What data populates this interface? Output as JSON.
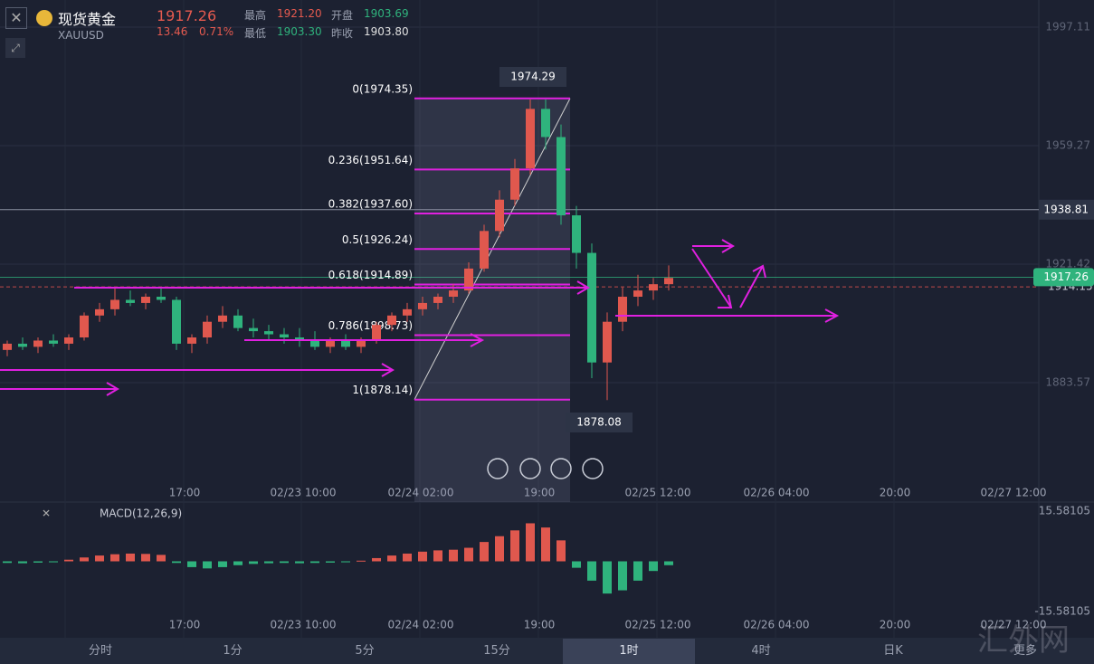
{
  "header": {
    "symbol_name": "现货黄金",
    "symbol_code": "XAUUSD",
    "price": "1917.26",
    "change": "13.46",
    "change_pct": "0.71%",
    "stats": [
      {
        "label": "最高",
        "value": "1921.20"
      },
      {
        "label": "开盘",
        "value": "1903.69"
      },
      {
        "label": "最低",
        "value": "1903.30"
      },
      {
        "label": "昨收",
        "value": "1903.80"
      }
    ]
  },
  "price_axis": {
    "ylim": [
      1848.3,
      2005.78
    ],
    "yticks": [
      1997.11,
      1959.27,
      1921.42,
      1883.57
    ],
    "crosshair": 1938.81,
    "last": 1917.26,
    "ref": 1914.15
  },
  "fib_levels": [
    {
      "value": 1974.35,
      "label": "0(1974.35)"
    },
    {
      "value": 1951.64,
      "label": "0.236(1951.64)"
    },
    {
      "value": 1937.6,
      "label": "0.382(1937.60)"
    },
    {
      "value": 1926.24,
      "label": "0.5(1926.24)"
    },
    {
      "value": 1914.89,
      "label": "0.618(1914.89)"
    },
    {
      "value": 1898.73,
      "label": "0.786(1898.73)"
    },
    {
      "value": 1878.14,
      "label": "1(1878.14)"
    }
  ],
  "high_marker": 1974.29,
  "low_marker": 1878.08,
  "candles": [
    [
      1894,
      1897,
      1892,
      1896
    ],
    [
      1896,
      1898,
      1894,
      1895
    ],
    [
      1895,
      1898,
      1893,
      1897
    ],
    [
      1897,
      1899,
      1895,
      1896
    ],
    [
      1896,
      1899,
      1894,
      1898
    ],
    [
      1898,
      1906,
      1897,
      1905
    ],
    [
      1905,
      1909,
      1903,
      1907
    ],
    [
      1907,
      1914,
      1905,
      1910
    ],
    [
      1910,
      1913,
      1908,
      1909
    ],
    [
      1909,
      1912,
      1907,
      1911
    ],
    [
      1911,
      1914,
      1909,
      1910
    ],
    [
      1910,
      1911,
      1894,
      1896
    ],
    [
      1896,
      1899,
      1893,
      1898
    ],
    [
      1898,
      1905,
      1896,
      1903
    ],
    [
      1903,
      1908,
      1901,
      1905
    ],
    [
      1905,
      1907,
      1900,
      1901
    ],
    [
      1901,
      1904,
      1898,
      1900
    ],
    [
      1900,
      1902,
      1897,
      1899
    ],
    [
      1899,
      1901,
      1896,
      1898
    ],
    [
      1898,
      1901,
      1895,
      1897
    ],
    [
      1897,
      1900,
      1894,
      1895
    ],
    [
      1895,
      1898,
      1893,
      1897
    ],
    [
      1897,
      1899,
      1894,
      1895
    ],
    [
      1895,
      1898,
      1893,
      1897
    ],
    [
      1897,
      1903,
      1896,
      1902
    ],
    [
      1902,
      1906,
      1900,
      1905
    ],
    [
      1905,
      1909,
      1903,
      1907
    ],
    [
      1907,
      1911,
      1905,
      1909
    ],
    [
      1909,
      1912,
      1907,
      1911
    ],
    [
      1911,
      1915,
      1909,
      1913
    ],
    [
      1913,
      1922,
      1912,
      1920
    ],
    [
      1920,
      1934,
      1919,
      1932
    ],
    [
      1932,
      1945,
      1930,
      1942
    ],
    [
      1942,
      1955,
      1940,
      1952
    ],
    [
      1952,
      1974,
      1950,
      1971
    ],
    [
      1971,
      1974,
      1958,
      1962
    ],
    [
      1962,
      1966,
      1934,
      1937
    ],
    [
      1937,
      1940,
      1920,
      1925
    ],
    [
      1925,
      1928,
      1885,
      1890
    ],
    [
      1890,
      1906,
      1878,
      1903
    ],
    [
      1903,
      1914,
      1900,
      1911
    ],
    [
      1911,
      1918,
      1908,
      1913
    ],
    [
      1913,
      1917,
      1910,
      1915
    ],
    [
      1915,
      1921,
      1913,
      1917
    ]
  ],
  "time_labels": [
    "17:00",
    "02/23 10:00",
    "02/24 02:00",
    "19:00",
    "02/25 12:00",
    "02/26 04:00",
    "20:00",
    "02/27 12:00"
  ],
  "macd": {
    "label": "MACD(12,26,9)",
    "ylim": [
      -15.58105,
      15.58105
    ],
    "yticks": [
      15.58105,
      -15.58105
    ],
    "histogram": [
      -0.5,
      -0.6,
      -0.4,
      -0.3,
      0.5,
      1.2,
      1.8,
      2.2,
      2.4,
      2.3,
      2.0,
      -0.5,
      -1.8,
      -2.2,
      -1.8,
      -1.2,
      -0.8,
      -0.6,
      -0.5,
      -0.6,
      -0.5,
      -0.4,
      -0.3,
      0.2,
      1.0,
      1.8,
      2.4,
      3.0,
      3.4,
      3.6,
      4.2,
      6.0,
      7.8,
      9.6,
      11.8,
      10.5,
      6.5,
      -2.0,
      -6.0,
      -10.0,
      -9.0,
      -6.0,
      -3.0,
      -1.2
    ]
  },
  "tabs": [
    "分时",
    "1分",
    "5分",
    "15分",
    "1时",
    "4时",
    "日K",
    "更多"
  ],
  "active_tab": 4,
  "watermark": "汇外网"
}
